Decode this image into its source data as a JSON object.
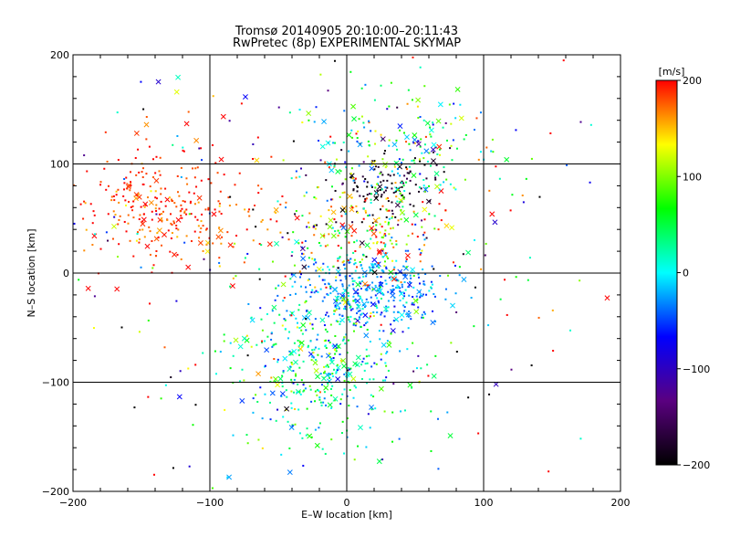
{
  "chart_data": {
    "type": "scatter",
    "title": "Tromsø 20140905 20:10:00–20:11:43",
    "subtitle": "RwPretec (8p) EXPERIMENTAL SKYMAP",
    "xlabel": "E–W location [km]",
    "ylabel": "N–S location [km]",
    "xlim": [
      -200,
      200
    ],
    "ylim": [
      -200,
      200
    ],
    "xticks": [
      "−200",
      "−100",
      "0",
      "100",
      "200"
    ],
    "yticks": [
      "−200",
      "−100",
      "0",
      "100",
      "200"
    ],
    "grid": true,
    "markers": [
      "dot",
      "x"
    ],
    "colorbar": {
      "label": "[m/s]",
      "range": [
        -200,
        200
      ],
      "ticks": [
        "200",
        "100",
        "0",
        "−100",
        "−200"
      ],
      "colormap": [
        "#000000",
        "#5a0080",
        "#0000ff",
        "#00ffff",
        "#00ff00",
        "#ffff00",
        "#ff0000"
      ]
    },
    "clusters": [
      {
        "center": [
          -130,
          60
        ],
        "spread": [
          40,
          28
        ],
        "count": 320,
        "velocity_mean": 185,
        "velocity_spread": 20
      },
      {
        "center": [
          25,
          75
        ],
        "spread": [
          20,
          20
        ],
        "count": 110,
        "velocity_mean": -185,
        "velocity_spread": 15
      },
      {
        "center": [
          20,
          -15
        ],
        "spread": [
          25,
          18
        ],
        "count": 360,
        "velocity_mean": -30,
        "velocity_spread": 25
      },
      {
        "center": [
          15,
          40
        ],
        "spread": [
          28,
          25
        ],
        "count": 220,
        "velocity_mean": 120,
        "velocity_spread": 70
      },
      {
        "center": [
          -20,
          -80
        ],
        "spread": [
          30,
          40
        ],
        "count": 420,
        "velocity_mean": 30,
        "velocity_spread": 50
      },
      {
        "center": [
          40,
          110
        ],
        "spread": [
          30,
          25
        ],
        "count": 180,
        "velocity_mean": 40,
        "velocity_spread": 80
      },
      {
        "center": [
          0,
          0
        ],
        "spread": [
          110,
          100
        ],
        "count": 300,
        "velocity_mean": 0,
        "velocity_spread": 160
      }
    ]
  }
}
